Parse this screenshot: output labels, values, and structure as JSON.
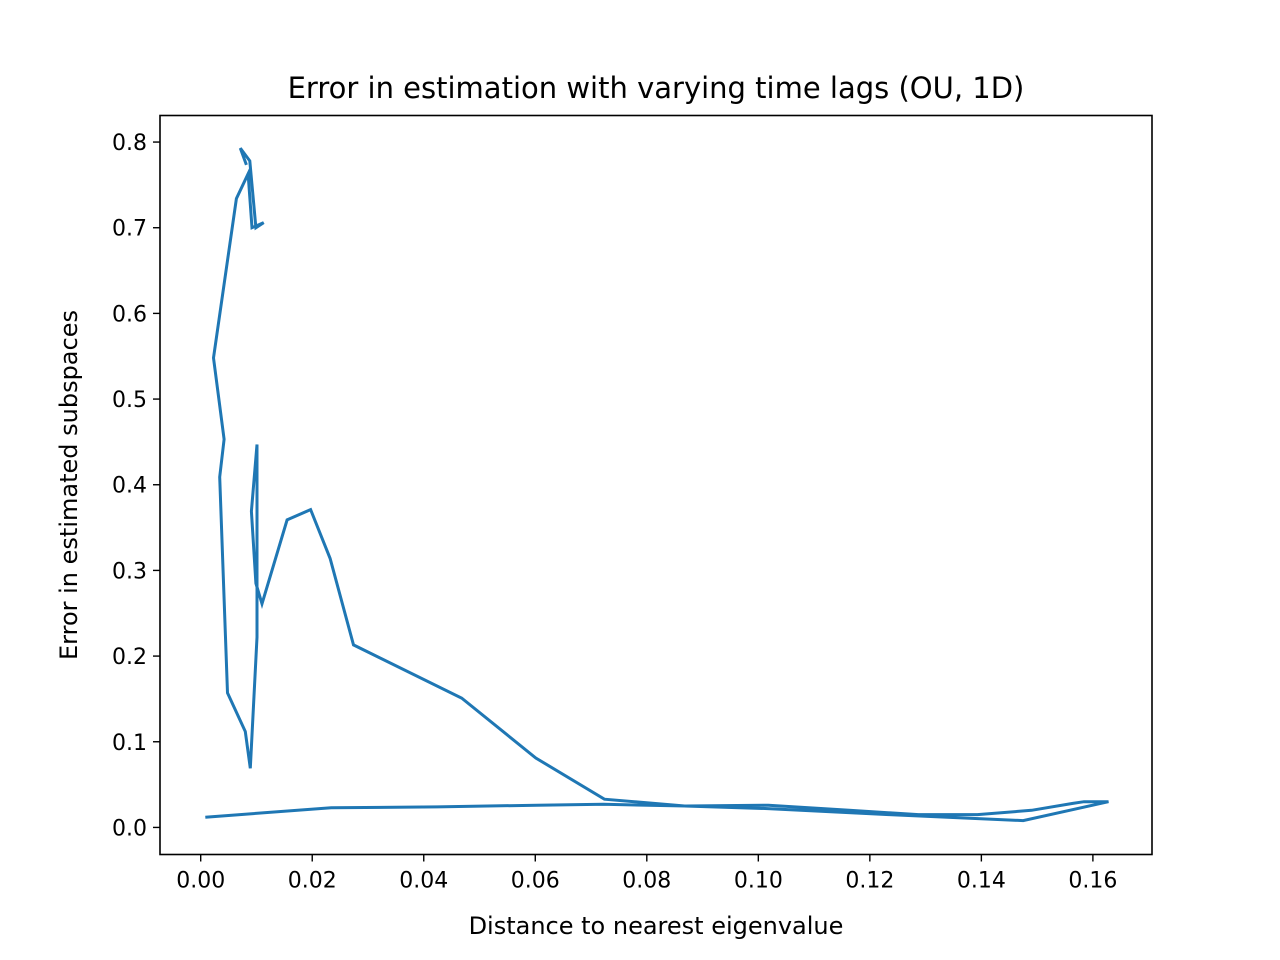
{
  "chart_data": {
    "type": "line",
    "title": "Error in estimation with varying time lags (OU, 1D)",
    "xlabel": "Distance to nearest eigenvalue",
    "ylabel": "Error in estimated subspaces",
    "xlim": [
      -0.0073,
      0.1706
    ],
    "ylim": [
      -0.0316,
      0.831
    ],
    "xticks": [
      0.0,
      0.02,
      0.04,
      0.06,
      0.08,
      0.1,
      0.12,
      0.14,
      0.16
    ],
    "xtick_labels": [
      "0.00",
      "0.02",
      "0.04",
      "0.06",
      "0.08",
      "0.10",
      "0.12",
      "0.14",
      "0.16"
    ],
    "yticks": [
      0.0,
      0.1,
      0.2,
      0.3,
      0.4,
      0.5,
      0.6,
      0.7,
      0.8
    ],
    "ytick_labels": [
      "0.0",
      "0.1",
      "0.2",
      "0.3",
      "0.4",
      "0.5",
      "0.6",
      "0.7",
      "0.8"
    ],
    "grid": false,
    "series": [
      {
        "color": "#1f77b4",
        "x": [
          0.0011,
          0.0234,
          0.0424,
          0.0603,
          0.0722,
          0.087,
          0.1018,
          0.1163,
          0.1287,
          0.1393,
          0.149,
          0.1564,
          0.1584,
          0.1628,
          0.1475,
          0.1234,
          0.1017,
          0.0868,
          0.0724,
          0.0601,
          0.0468,
          0.0274,
          0.0232,
          0.0197,
          0.0155,
          0.011,
          0.0099,
          0.0091,
          0.0101,
          0.0101,
          0.0089,
          0.008,
          0.0048,
          0.0034,
          0.0042,
          0.0023,
          0.0064,
          0.0085,
          0.0092,
          0.0113,
          0.0099,
          0.0088,
          0.0071,
          0.0081
        ],
        "y": [
          0.012,
          0.023,
          0.024,
          0.026,
          0.027,
          0.025,
          0.026,
          0.02,
          0.015,
          0.015,
          0.02,
          0.028,
          0.03,
          0.03,
          0.008,
          0.015,
          0.022,
          0.025,
          0.033,
          0.081,
          0.151,
          0.213,
          0.314,
          0.371,
          0.359,
          0.261,
          0.285,
          0.369,
          0.447,
          0.222,
          0.069,
          0.112,
          0.157,
          0.409,
          0.453,
          0.548,
          0.734,
          0.763,
          0.7,
          0.706,
          0.7,
          0.778,
          0.793,
          0.775
        ]
      }
    ]
  }
}
